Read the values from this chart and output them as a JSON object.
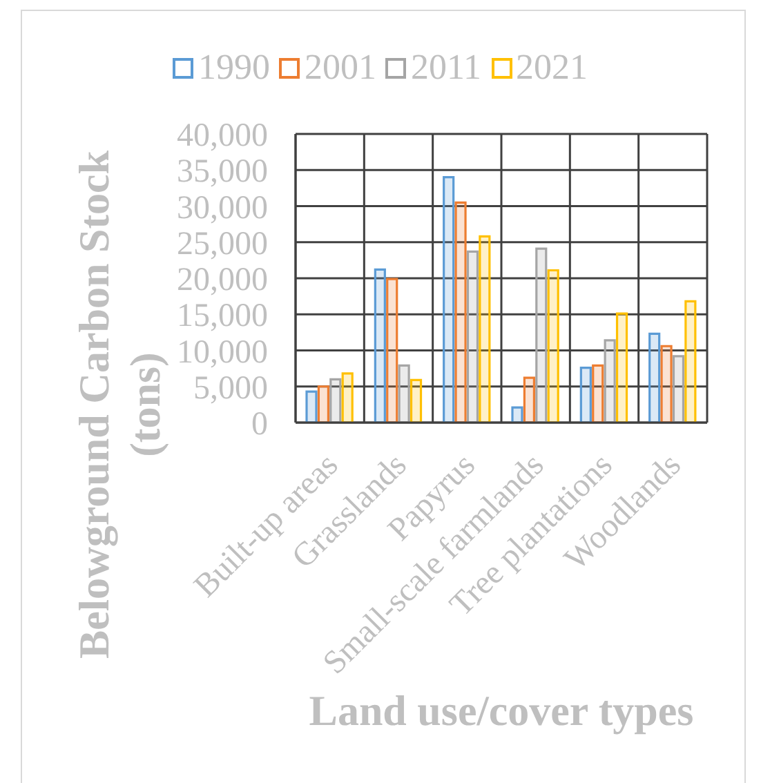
{
  "chart_data": {
    "type": "bar",
    "xlabel": "Land use/cover types",
    "ylabel": "Belowground Carbon Stock (tons)",
    "categories": [
      "Built-up areas",
      "Grasslands",
      "Papyrus",
      "Small-scale farmlands",
      "Tree plantations",
      "Woodlands"
    ],
    "series": [
      {
        "name": "1990",
        "color": "#5b9bd5",
        "values": [
          4300,
          21200,
          34000,
          2100,
          7600,
          12300
        ]
      },
      {
        "name": "2001",
        "color": "#ed7d31",
        "values": [
          5000,
          19900,
          30500,
          6200,
          7900,
          10600
        ]
      },
      {
        "name": "2011",
        "color": "#a5a5a5",
        "values": [
          6000,
          7900,
          23700,
          24100,
          11400,
          9200
        ]
      },
      {
        "name": "2021",
        "color": "#ffc000",
        "values": [
          6800,
          5900,
          25800,
          21100,
          15100,
          16800
        ]
      }
    ],
    "ylim": [
      0,
      40000
    ],
    "yticks": [
      0,
      {
        "value": 5000,
        "label": "5,000"
      },
      {
        "value": 10000,
        "label": "10,000"
      },
      {
        "value": 15000,
        "label": "15,000"
      },
      {
        "value": 20000,
        "label": "20,000"
      },
      {
        "value": 25000,
        "label": "25,000"
      },
      {
        "value": 30000,
        "label": "30,000"
      },
      {
        "value": 35000,
        "label": "35,000"
      },
      {
        "value": 40000,
        "label": "40,000"
      }
    ],
    "grid": true,
    "legend": "top"
  }
}
